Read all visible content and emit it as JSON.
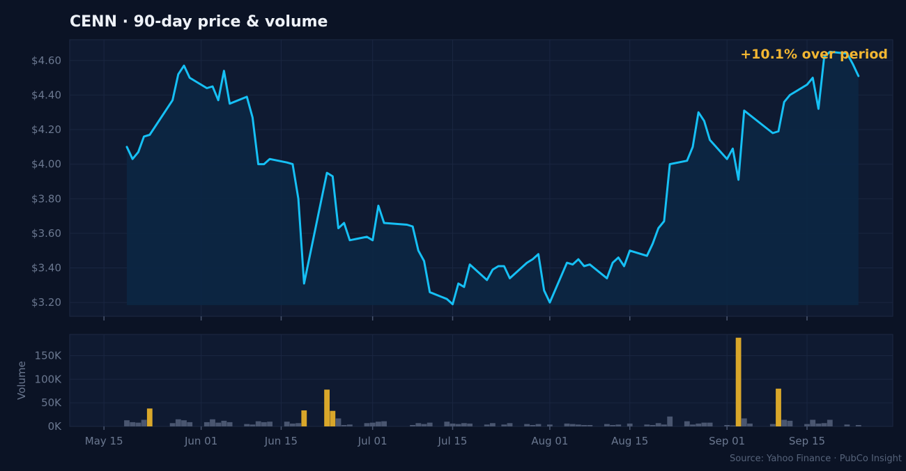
{
  "chart_data": {
    "type": "line",
    "title": "CENN  ·  90-day price & volume",
    "annotation": "+10.1% over period",
    "source": "Source: Yahoo Finance · PubCo Insight",
    "colors": {
      "background": "#0b1325",
      "panel": "#0f1a31",
      "grid": "#1a2641",
      "price_line": "#16c0f5",
      "price_fill": "#0c2744",
      "volume_bar": "#4a5670",
      "volume_spike": "#d9a72a",
      "annotation": "#f2b632"
    },
    "x_range": [
      "2025-05-09",
      "2025-09-30"
    ],
    "x_ticks": [
      {
        "date": "2025-05-15",
        "label": "May 15"
      },
      {
        "date": "2025-06-01",
        "label": "Jun 01"
      },
      {
        "date": "2025-06-15",
        "label": "Jun 15"
      },
      {
        "date": "2025-07-01",
        "label": "Jul 01"
      },
      {
        "date": "2025-07-15",
        "label": "Jul 15"
      },
      {
        "date": "2025-08-01",
        "label": "Aug 01"
      },
      {
        "date": "2025-08-15",
        "label": "Aug 15"
      },
      {
        "date": "2025-09-01",
        "label": "Sep 01"
      },
      {
        "date": "2025-09-15",
        "label": "Sep 15"
      }
    ],
    "price": {
      "ylim": [
        3.12,
        4.72
      ],
      "y_ticks": [
        {
          "value": 3.2,
          "label": "$3.20"
        },
        {
          "value": 3.4,
          "label": "$3.40"
        },
        {
          "value": 3.6,
          "label": "$3.60"
        },
        {
          "value": 3.8,
          "label": "$3.80"
        },
        {
          "value": 4.0,
          "label": "$4.00"
        },
        {
          "value": 4.2,
          "label": "$4.20"
        },
        {
          "value": 4.4,
          "label": "$4.40"
        },
        {
          "value": 4.6,
          "label": "$4.60"
        }
      ],
      "points": [
        [
          "2025-05-19",
          4.1
        ],
        [
          "2025-05-20",
          4.03
        ],
        [
          "2025-05-21",
          4.07
        ],
        [
          "2025-05-22",
          4.16
        ],
        [
          "2025-05-23",
          4.17
        ],
        [
          "2025-05-27",
          4.37
        ],
        [
          "2025-05-28",
          4.52
        ],
        [
          "2025-05-29",
          4.57
        ],
        [
          "2025-05-30",
          4.5
        ],
        [
          "2025-06-02",
          4.44
        ],
        [
          "2025-06-03",
          4.45
        ],
        [
          "2025-06-04",
          4.37
        ],
        [
          "2025-06-05",
          4.54
        ],
        [
          "2025-06-06",
          4.35
        ],
        [
          "2025-06-09",
          4.39
        ],
        [
          "2025-06-10",
          4.27
        ],
        [
          "2025-06-11",
          4.0
        ],
        [
          "2025-06-12",
          4.0
        ],
        [
          "2025-06-13",
          4.03
        ],
        [
          "2025-06-16",
          4.01
        ],
        [
          "2025-06-17",
          4.0
        ],
        [
          "2025-06-18",
          3.8
        ],
        [
          "2025-06-19",
          3.31
        ],
        [
          "2025-06-23",
          3.95
        ],
        [
          "2025-06-24",
          3.93
        ],
        [
          "2025-06-25",
          3.63
        ],
        [
          "2025-06-26",
          3.66
        ],
        [
          "2025-06-27",
          3.56
        ],
        [
          "2025-06-30",
          3.58
        ],
        [
          "2025-07-01",
          3.56
        ],
        [
          "2025-07-02",
          3.76
        ],
        [
          "2025-07-03",
          3.66
        ],
        [
          "2025-07-07",
          3.65
        ],
        [
          "2025-07-08",
          3.64
        ],
        [
          "2025-07-09",
          3.5
        ],
        [
          "2025-07-10",
          3.44
        ],
        [
          "2025-07-11",
          3.26
        ],
        [
          "2025-07-14",
          3.22
        ],
        [
          "2025-07-15",
          3.19
        ],
        [
          "2025-07-16",
          3.31
        ],
        [
          "2025-07-17",
          3.29
        ],
        [
          "2025-07-18",
          3.42
        ],
        [
          "2025-07-21",
          3.33
        ],
        [
          "2025-07-22",
          3.39
        ],
        [
          "2025-07-23",
          3.41
        ],
        [
          "2025-07-24",
          3.41
        ],
        [
          "2025-07-25",
          3.34
        ],
        [
          "2025-07-28",
          3.43
        ],
        [
          "2025-07-29",
          3.45
        ],
        [
          "2025-07-30",
          3.48
        ],
        [
          "2025-07-31",
          3.27
        ],
        [
          "2025-08-01",
          3.2
        ],
        [
          "2025-08-04",
          3.43
        ],
        [
          "2025-08-05",
          3.42
        ],
        [
          "2025-08-06",
          3.45
        ],
        [
          "2025-08-07",
          3.41
        ],
        [
          "2025-08-08",
          3.42
        ],
        [
          "2025-08-11",
          3.34
        ],
        [
          "2025-08-12",
          3.43
        ],
        [
          "2025-08-13",
          3.46
        ],
        [
          "2025-08-14",
          3.41
        ],
        [
          "2025-08-15",
          3.5
        ],
        [
          "2025-08-18",
          3.47
        ],
        [
          "2025-08-19",
          3.54
        ],
        [
          "2025-08-20",
          3.63
        ],
        [
          "2025-08-21",
          3.67
        ],
        [
          "2025-08-22",
          4.0
        ],
        [
          "2025-08-25",
          4.02
        ],
        [
          "2025-08-26",
          4.1
        ],
        [
          "2025-08-27",
          4.3
        ],
        [
          "2025-08-28",
          4.25
        ],
        [
          "2025-08-29",
          4.14
        ],
        [
          "2025-09-01",
          4.03
        ],
        [
          "2025-09-02",
          4.09
        ],
        [
          "2025-09-03",
          3.91
        ],
        [
          "2025-09-04",
          4.31
        ],
        [
          "2025-09-09",
          4.18
        ],
        [
          "2025-09-10",
          4.19
        ],
        [
          "2025-09-11",
          4.36
        ],
        [
          "2025-09-12",
          4.4
        ],
        [
          "2025-09-15",
          4.46
        ],
        [
          "2025-09-16",
          4.5
        ],
        [
          "2025-09-17",
          4.32
        ],
        [
          "2025-09-18",
          4.62
        ],
        [
          "2025-09-19",
          4.65
        ],
        [
          "2025-09-22",
          4.64
        ],
        [
          "2025-09-23",
          4.58
        ],
        [
          "2025-09-24",
          4.51
        ]
      ]
    },
    "volume": {
      "ylabel": "Volume",
      "ylim": [
        0,
        195000
      ],
      "y_ticks": [
        {
          "value": 0,
          "label": "0K"
        },
        {
          "value": 50000,
          "label": "50K"
        },
        {
          "value": 100000,
          "label": "100K"
        },
        {
          "value": 150000,
          "label": "150K"
        }
      ],
      "bars": [
        [
          "2025-05-19",
          13000,
          false
        ],
        [
          "2025-05-20",
          9000,
          false
        ],
        [
          "2025-05-21",
          8000,
          false
        ],
        [
          "2025-05-22",
          14000,
          false
        ],
        [
          "2025-05-23",
          38000,
          true
        ],
        [
          "2025-05-27",
          7000,
          false
        ],
        [
          "2025-05-28",
          15000,
          false
        ],
        [
          "2025-05-29",
          13000,
          false
        ],
        [
          "2025-05-30",
          9000,
          false
        ],
        [
          "2025-06-02",
          9000,
          false
        ],
        [
          "2025-06-03",
          15000,
          false
        ],
        [
          "2025-06-04",
          8000,
          false
        ],
        [
          "2025-06-05",
          12000,
          false
        ],
        [
          "2025-06-06",
          9000,
          false
        ],
        [
          "2025-06-09",
          5000,
          false
        ],
        [
          "2025-06-10",
          4000,
          false
        ],
        [
          "2025-06-11",
          11000,
          false
        ],
        [
          "2025-06-12",
          9000,
          false
        ],
        [
          "2025-06-13",
          10000,
          false
        ],
        [
          "2025-06-16",
          10000,
          false
        ],
        [
          "2025-06-17",
          6000,
          false
        ],
        [
          "2025-06-18",
          7000,
          false
        ],
        [
          "2025-06-19",
          34000,
          true
        ],
        [
          "2025-06-23",
          78000,
          true
        ],
        [
          "2025-06-24",
          33000,
          true
        ],
        [
          "2025-06-25",
          17000,
          false
        ],
        [
          "2025-06-26",
          3000,
          false
        ],
        [
          "2025-06-27",
          4000,
          false
        ],
        [
          "2025-06-30",
          7000,
          false
        ],
        [
          "2025-07-01",
          8000,
          false
        ],
        [
          "2025-07-02",
          10000,
          false
        ],
        [
          "2025-07-03",
          11000,
          false
        ],
        [
          "2025-07-08",
          3000,
          false
        ],
        [
          "2025-07-09",
          7000,
          false
        ],
        [
          "2025-07-10",
          5000,
          false
        ],
        [
          "2025-07-11",
          8000,
          false
        ],
        [
          "2025-07-14",
          10000,
          false
        ],
        [
          "2025-07-15",
          6000,
          false
        ],
        [
          "2025-07-16",
          5000,
          false
        ],
        [
          "2025-07-17",
          7000,
          false
        ],
        [
          "2025-07-18",
          6000,
          false
        ],
        [
          "2025-07-21",
          4000,
          false
        ],
        [
          "2025-07-22",
          7000,
          false
        ],
        [
          "2025-07-24",
          4000,
          false
        ],
        [
          "2025-07-25",
          7000,
          false
        ],
        [
          "2025-07-28",
          5000,
          false
        ],
        [
          "2025-07-29",
          3000,
          false
        ],
        [
          "2025-07-30",
          5000,
          false
        ],
        [
          "2025-08-01",
          4000,
          false
        ],
        [
          "2025-08-04",
          6000,
          false
        ],
        [
          "2025-08-05",
          5000,
          false
        ],
        [
          "2025-08-06",
          4000,
          false
        ],
        [
          "2025-08-07",
          3000,
          false
        ],
        [
          "2025-08-08",
          3000,
          false
        ],
        [
          "2025-08-11",
          5000,
          false
        ],
        [
          "2025-08-12",
          3000,
          false
        ],
        [
          "2025-08-13",
          4000,
          false
        ],
        [
          "2025-08-15",
          6000,
          false
        ],
        [
          "2025-08-18",
          4000,
          false
        ],
        [
          "2025-08-19",
          3000,
          false
        ],
        [
          "2025-08-20",
          7000,
          false
        ],
        [
          "2025-08-21",
          4000,
          false
        ],
        [
          "2025-08-22",
          21000,
          false
        ],
        [
          "2025-08-25",
          11000,
          false
        ],
        [
          "2025-08-26",
          4000,
          false
        ],
        [
          "2025-08-27",
          6000,
          false
        ],
        [
          "2025-08-28",
          8000,
          false
        ],
        [
          "2025-08-29",
          8000,
          false
        ],
        [
          "2025-09-01",
          3000,
          false
        ],
        [
          "2025-09-02",
          2000,
          false
        ],
        [
          "2025-09-03",
          188000,
          true
        ],
        [
          "2025-09-04",
          17000,
          false
        ],
        [
          "2025-09-05",
          6000,
          false
        ],
        [
          "2025-09-09",
          5000,
          false
        ],
        [
          "2025-09-10",
          80000,
          true
        ],
        [
          "2025-09-11",
          14000,
          false
        ],
        [
          "2025-09-12",
          12000,
          false
        ],
        [
          "2025-09-15",
          5000,
          false
        ],
        [
          "2025-09-16",
          14000,
          false
        ],
        [
          "2025-09-17",
          6000,
          false
        ],
        [
          "2025-09-18",
          7000,
          false
        ],
        [
          "2025-09-19",
          14000,
          false
        ],
        [
          "2025-09-22",
          4000,
          false
        ],
        [
          "2025-09-24",
          3000,
          false
        ]
      ]
    }
  }
}
